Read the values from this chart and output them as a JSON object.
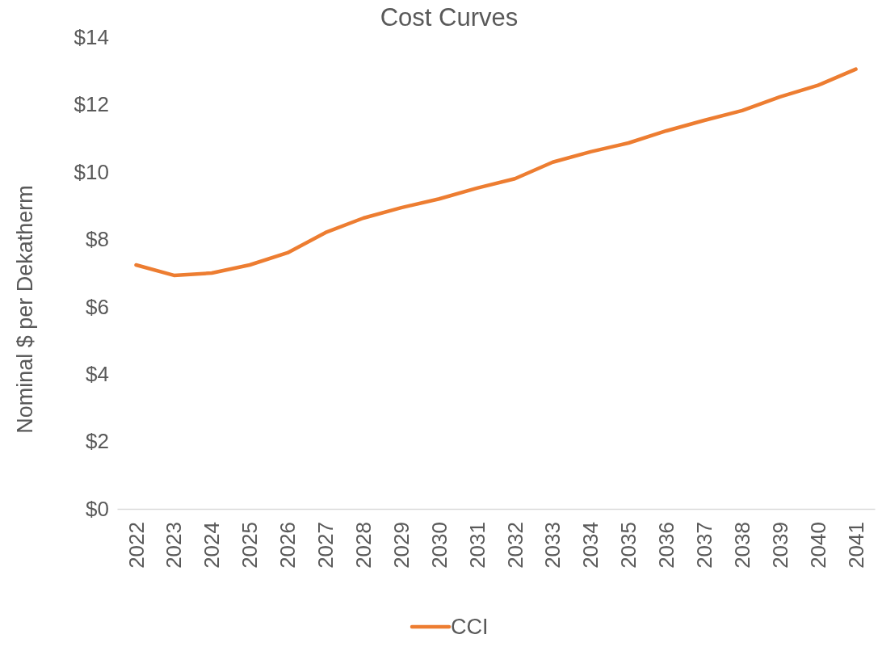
{
  "chart_data": {
    "type": "line",
    "title": "Cost Curves",
    "ylabel": "Nominal $ per Dekatherm",
    "categories": [
      "2022",
      "2023",
      "2024",
      "2025",
      "2026",
      "2027",
      "2028",
      "2029",
      "2030",
      "2031",
      "2032",
      "2033",
      "2034",
      "2035",
      "2036",
      "2037",
      "2038",
      "2039",
      "2040",
      "2041"
    ],
    "series": [
      {
        "name": "CCI",
        "color": "#ed7d31",
        "values": [
          7.24,
          6.93,
          7.0,
          7.24,
          7.6,
          8.2,
          8.63,
          8.94,
          9.2,
          9.52,
          9.8,
          10.29,
          10.6,
          10.86,
          11.22,
          11.53,
          11.82,
          12.23,
          12.57,
          13.05
        ]
      }
    ],
    "ylim": [
      0,
      14
    ],
    "yticks": [
      {
        "value": 0,
        "label": "$0"
      },
      {
        "value": 2,
        "label": "$2"
      },
      {
        "value": 4,
        "label": "$4"
      },
      {
        "value": 6,
        "label": "$6"
      },
      {
        "value": 8,
        "label": "$8"
      },
      {
        "value": 10,
        "label": "$10"
      },
      {
        "value": 12,
        "label": "$12"
      },
      {
        "value": 14,
        "label": "$14"
      }
    ],
    "legend": "bottom",
    "marker": "none",
    "line_style": "solid"
  }
}
